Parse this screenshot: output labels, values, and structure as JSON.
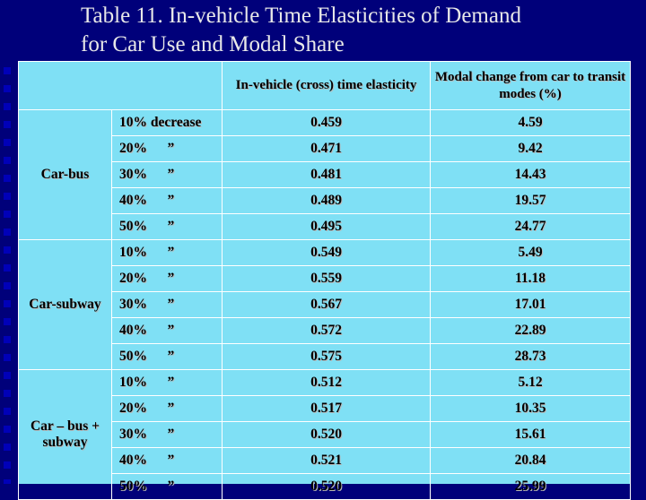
{
  "title_line1": "Table 11.  In-vehicle Time Elasticities of Demand",
  "title_line2": "for Car Use and Modal Share",
  "headers": {
    "col1": "",
    "col2": "In-vehicle (cross) time elasticity",
    "col3": "Modal change from car to transit modes (%)"
  },
  "groups": [
    {
      "name": "Car-bus",
      "rows": [
        {
          "change": "10% decrease",
          "ditto": "",
          "elasticity": "0.459",
          "modal": "4.59"
        },
        {
          "change": "20%",
          "ditto": "”",
          "elasticity": "0.471",
          "modal": "9.42"
        },
        {
          "change": "30%",
          "ditto": "”",
          "elasticity": "0.481",
          "modal": "14.43"
        },
        {
          "change": "40%",
          "ditto": "”",
          "elasticity": "0.489",
          "modal": "19.57"
        },
        {
          "change": "50%",
          "ditto": "”",
          "elasticity": "0.495",
          "modal": "24.77"
        }
      ]
    },
    {
      "name": "Car-subway",
      "rows": [
        {
          "change": "10%",
          "ditto": "”",
          "elasticity": "0.549",
          "modal": "5.49"
        },
        {
          "change": "20%",
          "ditto": "”",
          "elasticity": "0.559",
          "modal": "11.18"
        },
        {
          "change": "30%",
          "ditto": "”",
          "elasticity": "0.567",
          "modal": "17.01"
        },
        {
          "change": "40%",
          "ditto": "”",
          "elasticity": "0.572",
          "modal": "22.89"
        },
        {
          "change": "50%",
          "ditto": "”",
          "elasticity": "0.575",
          "modal": "28.73"
        }
      ]
    },
    {
      "name": "Car – bus + subway",
      "rows": [
        {
          "change": "10%",
          "ditto": "”",
          "elasticity": "0.512",
          "modal": "5.12"
        },
        {
          "change": "20%",
          "ditto": "”",
          "elasticity": "0.517",
          "modal": "10.35"
        },
        {
          "change": "30%",
          "ditto": "”",
          "elasticity": "0.520",
          "modal": "15.61"
        },
        {
          "change": "40%",
          "ditto": "”",
          "elasticity": "0.521",
          "modal": "20.84"
        },
        {
          "change": "50%",
          "ditto": "”",
          "elasticity": "0.520",
          "modal": "25.99"
        }
      ]
    }
  ]
}
